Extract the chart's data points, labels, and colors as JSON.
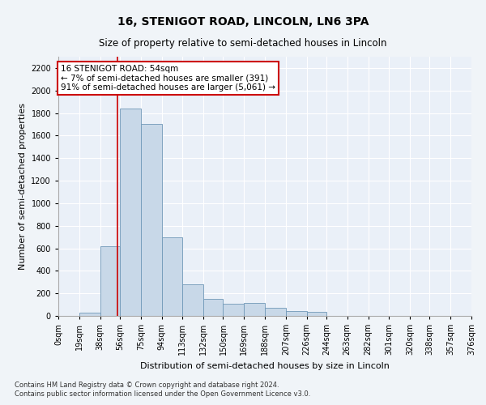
{
  "title": "16, STENIGOT ROAD, LINCOLN, LN6 3PA",
  "subtitle": "Size of property relative to semi-detached houses in Lincoln",
  "xlabel": "Distribution of semi-detached houses by size in Lincoln",
  "ylabel": "Number of semi-detached properties",
  "footnote1": "Contains HM Land Registry data © Crown copyright and database right 2024.",
  "footnote2": "Contains public sector information licensed under the Open Government Licence v3.0.",
  "annotation_title": "16 STENIGOT ROAD: 54sqm",
  "annotation_line1": "← 7% of semi-detached houses are smaller (391)",
  "annotation_line2": "91% of semi-detached houses are larger (5,061) →",
  "property_size": 54,
  "bar_left_edges": [
    0,
    19,
    38,
    56,
    75,
    94,
    113,
    132,
    150,
    169,
    188,
    207,
    226,
    244,
    263,
    282,
    301,
    320,
    338,
    357
  ],
  "bar_widths": [
    19,
    19,
    18,
    19,
    19,
    19,
    19,
    18,
    19,
    19,
    19,
    19,
    18,
    19,
    19,
    19,
    19,
    18,
    19,
    19
  ],
  "bar_heights": [
    0,
    30,
    620,
    1840,
    1700,
    700,
    280,
    150,
    105,
    115,
    70,
    40,
    35,
    0,
    0,
    0,
    0,
    0,
    0,
    0
  ],
  "bar_color": "#c8d8e8",
  "bar_edge_color": "#7098b8",
  "vline_color": "#cc0000",
  "vline_x": 54,
  "xlim": [
    0,
    376
  ],
  "ylim": [
    0,
    2300
  ],
  "yticks": [
    0,
    200,
    400,
    600,
    800,
    1000,
    1200,
    1400,
    1600,
    1800,
    2000,
    2200
  ],
  "xtick_labels": [
    "0sqm",
    "19sqm",
    "38sqm",
    "56sqm",
    "75sqm",
    "94sqm",
    "113sqm",
    "132sqm",
    "150sqm",
    "169sqm",
    "188sqm",
    "207sqm",
    "226sqm",
    "244sqm",
    "263sqm",
    "282sqm",
    "301sqm",
    "320sqm",
    "338sqm",
    "357sqm",
    "376sqm"
  ],
  "xtick_positions": [
    0,
    19,
    38,
    56,
    75,
    94,
    113,
    132,
    150,
    169,
    188,
    207,
    226,
    244,
    263,
    282,
    301,
    320,
    338,
    357,
    376
  ],
  "background_color": "#eaf0f8",
  "grid_color": "#ffffff",
  "annotation_box_color": "#cc0000",
  "fig_background": "#f0f4f8",
  "title_fontsize": 10,
  "subtitle_fontsize": 8.5,
  "axis_label_fontsize": 8,
  "tick_fontsize": 7,
  "annotation_fontsize": 7.5,
  "footnote_fontsize": 6
}
